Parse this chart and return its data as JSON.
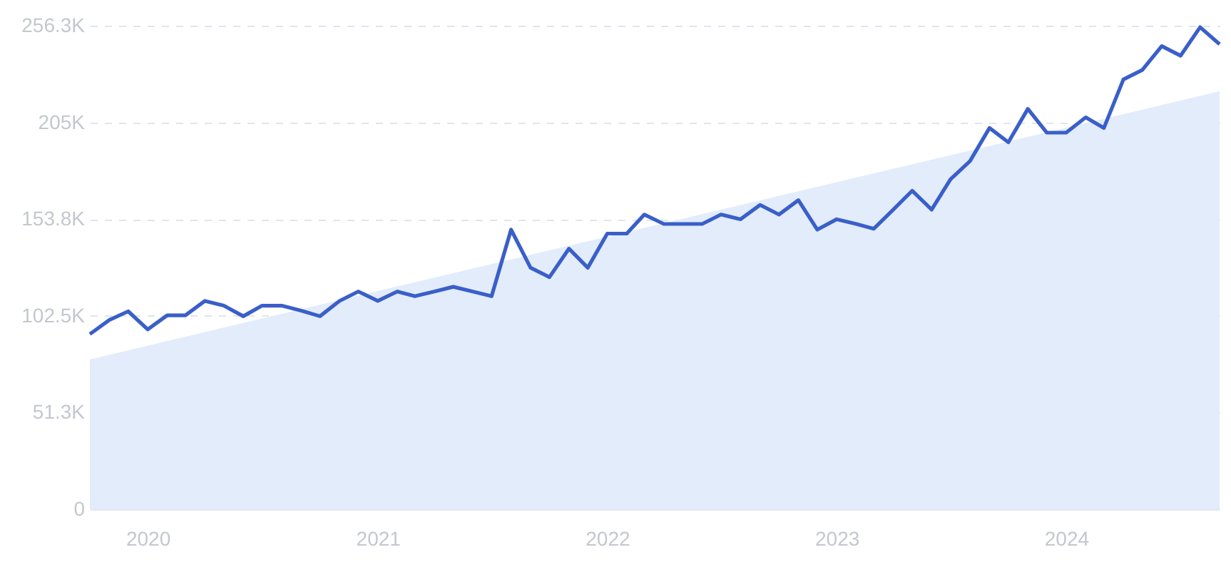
{
  "chart_data": {
    "type": "line",
    "x": [
      "2019-10",
      "2019-11",
      "2019-12",
      "2020-01",
      "2020-02",
      "2020-03",
      "2020-04",
      "2020-05",
      "2020-06",
      "2020-07",
      "2020-08",
      "2020-09",
      "2020-10",
      "2020-11",
      "2020-12",
      "2021-01",
      "2021-02",
      "2021-03",
      "2021-04",
      "2021-05",
      "2021-06",
      "2021-07",
      "2021-08",
      "2021-09",
      "2021-10",
      "2021-11",
      "2021-12",
      "2022-01",
      "2022-02",
      "2022-03",
      "2022-04",
      "2022-05",
      "2022-06",
      "2022-07",
      "2022-08",
      "2022-09",
      "2022-10",
      "2022-11",
      "2022-12",
      "2023-01",
      "2023-02",
      "2023-03",
      "2023-04",
      "2023-05",
      "2023-06",
      "2023-07",
      "2023-08",
      "2023-09",
      "2023-10",
      "2023-11",
      "2023-12",
      "2024-01",
      "2024-02",
      "2024-03",
      "2024-04",
      "2024-05",
      "2024-06",
      "2024-07",
      "2024-08",
      "2024-09"
    ],
    "series": [
      {
        "type": "area",
        "color": "#e2ecfb",
        "x": [
          "2019-10",
          "2024-09"
        ],
        "values": [
          79400,
          221500
        ]
      },
      {
        "color": "#3a5fc9",
        "values": [
          92800,
          100300,
          104900,
          95300,
          102800,
          102800,
          110400,
          107900,
          102300,
          107900,
          107900,
          105300,
          102300,
          110400,
          115400,
          110400,
          115400,
          112900,
          115400,
          117900,
          115400,
          112900,
          148200,
          128000,
          123000,
          138100,
          128000,
          146100,
          146100,
          156200,
          151200,
          151200,
          151200,
          156200,
          153700,
          161300,
          156200,
          163800,
          148200,
          153700,
          151200,
          148700,
          158800,
          168800,
          158800,
          174900,
          184500,
          202100,
          194500,
          212200,
          199600,
          199600,
          207700,
          202100,
          227800,
          232800,
          245500,
          240400,
          255500,
          246500
        ]
      }
    ],
    "xlim": [
      "2019-10",
      "2024-09"
    ],
    "xticks": [
      "2020",
      "2021",
      "2022",
      "2023",
      "2024"
    ],
    "ylim": [
      0,
      256300
    ],
    "yticks": [
      0,
      {
        "value": 51300,
        "label": "51.3K"
      },
      {
        "value": 102500,
        "label": "102.5K"
      },
      {
        "value": 153800,
        "label": "153.8K"
      },
      {
        "value": 205000,
        "label": "205K"
      },
      {
        "value": 256300,
        "label": "256.3K"
      }
    ],
    "grid": "y",
    "marker": "none",
    "line_style": "solid"
  }
}
